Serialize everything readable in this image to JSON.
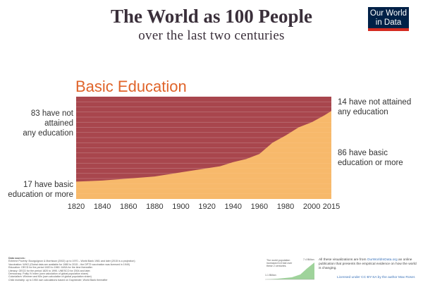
{
  "header": {
    "title": "The World as 100 People",
    "subtitle": "over the last two centuries",
    "logo_line1": "Our World",
    "logo_line2": "in Data"
  },
  "section_title": "Basic Education",
  "labels": {
    "left_top": [
      "83 have not attained",
      "any education"
    ],
    "left_bottom": [
      "17 have basic",
      "education or more"
    ],
    "right_top": [
      "14 have not attained",
      "any education"
    ],
    "right_bottom": [
      "86 have basic",
      "education or more"
    ]
  },
  "chart_data": {
    "type": "area",
    "x": [
      1820,
      1840,
      1860,
      1870,
      1880,
      1900,
      1910,
      1920,
      1930,
      1940,
      1950,
      1960,
      1970,
      1980,
      1990,
      2000,
      2010,
      2015
    ],
    "series": [
      {
        "name": "Basic education or more",
        "values": [
          17,
          18,
          20,
          21,
          22,
          26,
          28,
          30,
          32,
          36,
          39,
          44,
          55,
          62,
          70,
          75,
          82,
          86
        ],
        "color": "#f7b96b"
      },
      {
        "name": "No education",
        "values": [
          83,
          82,
          80,
          79,
          78,
          74,
          72,
          70,
          68,
          64,
          61,
          56,
          45,
          38,
          30,
          25,
          18,
          14
        ],
        "color": "#a8464d"
      }
    ],
    "xticks": [
      "1820",
      "1840",
      "1860",
      "1880",
      "1900",
      "1920",
      "1940",
      "1960",
      "1980",
      "2000",
      "2015"
    ],
    "xlim": [
      1820,
      2015
    ],
    "ylim": [
      0,
      100
    ],
    "stacked": true,
    "grid": true
  },
  "footer": {
    "heading": "Data sources:",
    "lines": [
      "Extreme Poverty: Bourguignon & Morrisson (2002) up to 1970 – World Bank 1981 and later (2015 is a projection)",
      "Vaccination: WHO (Global data are available for 1980 to 2015 – the DPT3 vaccination was licensed in 1949)",
      "Education: OECD for the period 1820 to 1960. IIASA for the time thereafter.",
      "Literacy: OECD for the period 1820 to 1990. UNESCO for 2004 and later.",
      "Democracy: Polity IV index (own calculation of global population share)",
      "Colonialism: Wimmer and Min (own calculation of global population share)",
      "Child mortality: up to 1950 own calculations based on Gapminder; World Bank thereafter"
    ],
    "mini_text": "The world population increased 6.8 fold over these 2 centuries.",
    "mini_pop_end": "7.4 Billion",
    "mini_pop_start": "1.1 Billion",
    "credit_prefix": "All these visualizations are from ",
    "credit_link": "OurWorldInData.org",
    "credit_suffix": " an online publication that presents the empirical evidence on how the world is changing.",
    "license": "Licensed under CC-BY-SA by the author Max Roser."
  }
}
